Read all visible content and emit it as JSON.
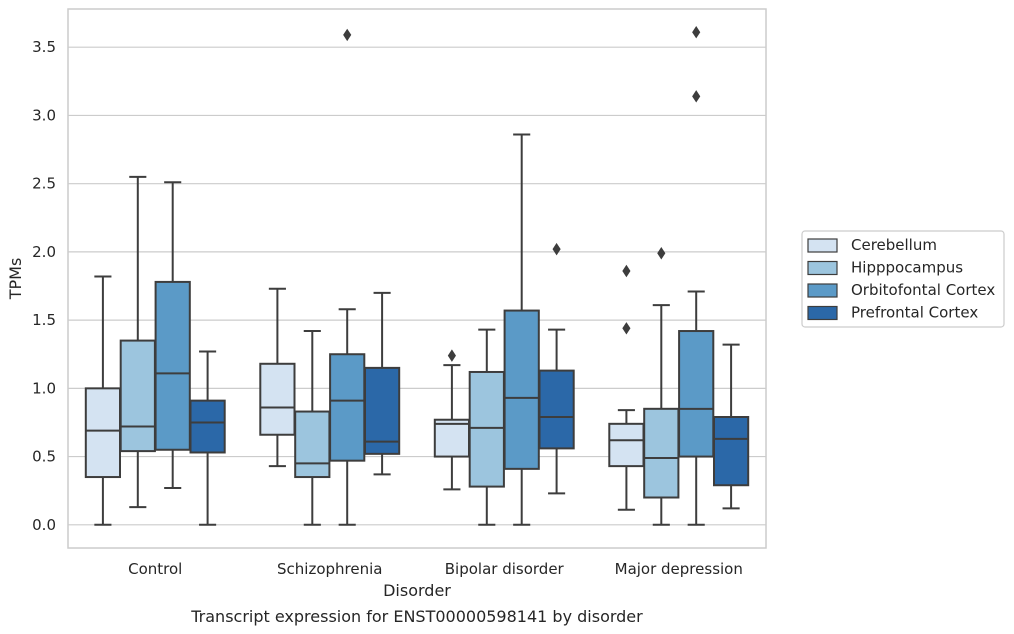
{
  "chart_data": {
    "type": "box",
    "caption": "Transcript expression for ENST00000598141 by disorder",
    "xlabel": "Disorder",
    "ylabel": "TPMs",
    "ylim": [
      -0.17,
      3.78
    ],
    "yticks": [
      0.0,
      0.5,
      1.0,
      1.5,
      2.0,
      2.5,
      3.0,
      3.5
    ],
    "ytick_labels": [
      "0.0",
      "0.5",
      "1.0",
      "1.5",
      "2.0",
      "2.5",
      "3.0",
      "3.5"
    ],
    "grid": "horizontal",
    "legend_position": "right",
    "categories": [
      "Control",
      "Schizophrenia",
      "Bipolar disorder",
      "Major depression"
    ],
    "series": [
      {
        "name": "Cerebellum",
        "color": "#d4e3f2",
        "boxes": [
          {
            "whisker_low": 0.0,
            "q1": 0.35,
            "median": 0.69,
            "q3": 1.0,
            "whisker_high": 1.82,
            "outliers": []
          },
          {
            "whisker_low": 0.43,
            "q1": 0.66,
            "median": 0.86,
            "q3": 1.18,
            "whisker_high": 1.73,
            "outliers": []
          },
          {
            "whisker_low": 0.26,
            "q1": 0.5,
            "median": 0.74,
            "q3": 0.77,
            "whisker_high": 1.17,
            "outliers": [
              1.24
            ]
          },
          {
            "whisker_low": 0.11,
            "q1": 0.43,
            "median": 0.62,
            "q3": 0.74,
            "whisker_high": 0.84,
            "outliers": [
              1.44,
              1.86
            ]
          }
        ]
      },
      {
        "name": "Hipppocampus",
        "color": "#9cc5de",
        "boxes": [
          {
            "whisker_low": 0.13,
            "q1": 0.54,
            "median": 0.72,
            "q3": 1.35,
            "whisker_high": 2.55,
            "outliers": []
          },
          {
            "whisker_low": 0.0,
            "q1": 0.35,
            "median": 0.45,
            "q3": 0.83,
            "whisker_high": 1.42,
            "outliers": []
          },
          {
            "whisker_low": 0.0,
            "q1": 0.28,
            "median": 0.71,
            "q3": 1.12,
            "whisker_high": 1.43,
            "outliers": []
          },
          {
            "whisker_low": 0.0,
            "q1": 0.2,
            "median": 0.49,
            "q3": 0.85,
            "whisker_high": 1.61,
            "outliers": [
              1.99
            ]
          }
        ]
      },
      {
        "name": "Orbitofontal Cortex",
        "color": "#5b9ac7",
        "boxes": [
          {
            "whisker_low": 0.27,
            "q1": 0.55,
            "median": 1.11,
            "q3": 1.78,
            "whisker_high": 2.51,
            "outliers": []
          },
          {
            "whisker_low": 0.0,
            "q1": 0.47,
            "median": 0.91,
            "q3": 1.25,
            "whisker_high": 1.58,
            "outliers": [
              3.59
            ]
          },
          {
            "whisker_low": 0.0,
            "q1": 0.41,
            "median": 0.93,
            "q3": 1.57,
            "whisker_high": 2.86,
            "outliers": []
          },
          {
            "whisker_low": 0.0,
            "q1": 0.5,
            "median": 0.85,
            "q3": 1.42,
            "whisker_high": 1.71,
            "outliers": [
              3.14,
              3.61
            ]
          }
        ]
      },
      {
        "name": "Prefrontal Cortex",
        "color": "#2b68a8",
        "boxes": [
          {
            "whisker_low": 0.0,
            "q1": 0.53,
            "median": 0.75,
            "q3": 0.91,
            "whisker_high": 1.27,
            "outliers": []
          },
          {
            "whisker_low": 0.37,
            "q1": 0.52,
            "median": 0.61,
            "q3": 1.15,
            "whisker_high": 1.7,
            "outliers": []
          },
          {
            "whisker_low": 0.23,
            "q1": 0.56,
            "median": 0.79,
            "q3": 1.13,
            "whisker_high": 1.43,
            "outliers": [
              2.02
            ]
          },
          {
            "whisker_low": 0.12,
            "q1": 0.29,
            "median": 0.63,
            "q3": 0.79,
            "whisker_high": 1.32,
            "outliers": []
          }
        ]
      }
    ]
  }
}
